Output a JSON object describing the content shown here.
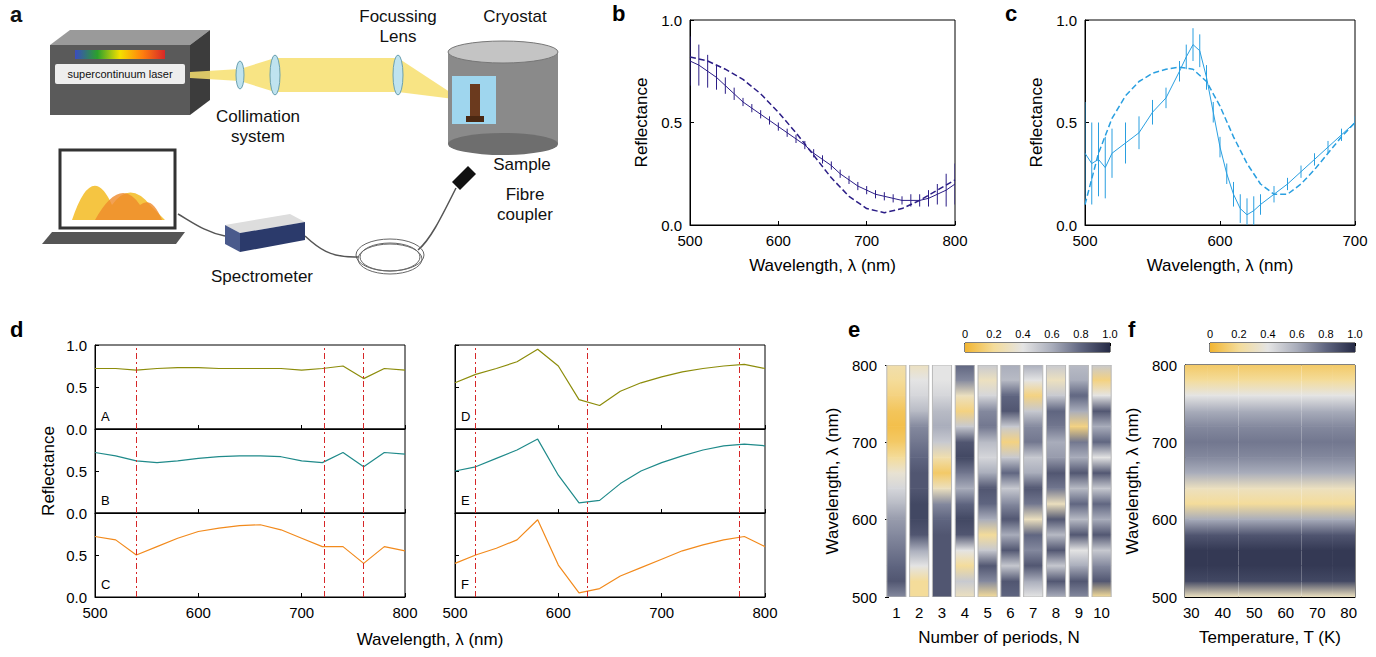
{
  "diagram": {
    "panel_label": "a",
    "labels": {
      "laser": "supercontinuum laser",
      "collimation": [
        "Collimation",
        "system"
      ],
      "focussing": [
        "Focussing",
        "Lens"
      ],
      "cryostat": "Cryostat",
      "sample": "Sample",
      "fibre": [
        "Fibre",
        "coupler"
      ],
      "spectrometer": "Spectrometer"
    }
  },
  "chart_data": [
    {
      "type": "line",
      "panel_label": "b",
      "xlabel": "Wavelength, λ (nm)",
      "ylabel": "Reflectance",
      "xlim": [
        500,
        800
      ],
      "xticks": [
        500,
        600,
        700,
        800
      ],
      "ylim": [
        0,
        1
      ],
      "yticks": [
        {
          "value": 0,
          "label": "0.0"
        },
        {
          "value": 0.5,
          "label": "0.5"
        },
        {
          "value": 1,
          "label": "1.0"
        }
      ],
      "series": [
        {
          "type": "line",
          "color": "#2b1d86",
          "line_style": "solid",
          "x": [
            500,
            510,
            520,
            530,
            540,
            550,
            560,
            570,
            580,
            590,
            600,
            610,
            620,
            630,
            640,
            650,
            660,
            670,
            680,
            690,
            700,
            710,
            720,
            730,
            740,
            750,
            760,
            770,
            780,
            790,
            800
          ],
          "values": [
            0.8,
            0.78,
            0.75,
            0.72,
            0.68,
            0.64,
            0.6,
            0.57,
            0.54,
            0.51,
            0.48,
            0.45,
            0.42,
            0.39,
            0.35,
            0.32,
            0.29,
            0.25,
            0.22,
            0.19,
            0.17,
            0.15,
            0.14,
            0.13,
            0.12,
            0.12,
            0.12,
            0.13,
            0.15,
            0.17,
            0.2
          ],
          "errors": [
            0.12,
            0.1,
            0.08,
            0.06,
            0.04,
            0.03,
            0.02,
            0.02,
            0.02,
            0.02,
            0.02,
            0.02,
            0.02,
            0.02,
            0.02,
            0.02,
            0.02,
            0.02,
            0.02,
            0.02,
            0.02,
            0.02,
            0.02,
            0.02,
            0.02,
            0.03,
            0.03,
            0.04,
            0.05,
            0.08,
            0.1
          ]
        },
        {
          "type": "line",
          "color": "#2b1d86",
          "line_style": "dashed",
          "x": [
            500,
            520,
            540,
            560,
            580,
            600,
            620,
            640,
            660,
            680,
            700,
            720,
            740,
            760,
            780,
            800
          ],
          "values": [
            0.82,
            0.8,
            0.76,
            0.71,
            0.64,
            0.55,
            0.45,
            0.34,
            0.23,
            0.14,
            0.08,
            0.06,
            0.08,
            0.12,
            0.17,
            0.22
          ]
        }
      ]
    },
    {
      "type": "line",
      "panel_label": "c",
      "xlabel": "Wavelength, λ (nm)",
      "ylabel": "Reflectance",
      "xlim": [
        500,
        700
      ],
      "xticks": [
        500,
        600,
        700
      ],
      "ylim": [
        0,
        1
      ],
      "yticks": [
        {
          "value": 0,
          "label": "0.0"
        },
        {
          "value": 0.5,
          "label": "0.5"
        },
        {
          "value": 1,
          "label": "1.0"
        }
      ],
      "series": [
        {
          "type": "line",
          "color": "#2a9fe0",
          "line_style": "solid",
          "x": [
            500,
            505,
            510,
            515,
            520,
            530,
            540,
            550,
            560,
            570,
            575,
            580,
            585,
            590,
            595,
            600,
            605,
            610,
            615,
            620,
            625,
            630,
            640,
            650,
            660,
            670,
            680,
            690,
            700
          ],
          "values": [
            0.35,
            0.3,
            0.32,
            0.28,
            0.35,
            0.4,
            0.45,
            0.55,
            0.62,
            0.75,
            0.82,
            0.88,
            0.85,
            0.72,
            0.55,
            0.38,
            0.25,
            0.15,
            0.08,
            0.05,
            0.07,
            0.1,
            0.15,
            0.2,
            0.26,
            0.32,
            0.38,
            0.44,
            0.5
          ],
          "errors": [
            0.25,
            0.2,
            0.18,
            0.15,
            0.12,
            0.1,
            0.08,
            0.06,
            0.05,
            0.05,
            0.06,
            0.08,
            0.08,
            0.06,
            0.05,
            0.05,
            0.05,
            0.06,
            0.07,
            0.08,
            0.07,
            0.05,
            0.04,
            0.03,
            0.03,
            0.03,
            0.03,
            0.03,
            0.03
          ]
        },
        {
          "type": "line",
          "color": "#2a9fe0",
          "line_style": "dashed",
          "x": [
            500,
            510,
            520,
            530,
            540,
            550,
            560,
            570,
            580,
            590,
            600,
            610,
            620,
            630,
            640,
            650,
            660,
            670,
            680,
            690,
            700
          ],
          "values": [
            0.1,
            0.35,
            0.52,
            0.63,
            0.7,
            0.74,
            0.76,
            0.77,
            0.76,
            0.7,
            0.58,
            0.43,
            0.3,
            0.2,
            0.15,
            0.15,
            0.2,
            0.27,
            0.35,
            0.43,
            0.5
          ]
        }
      ]
    },
    {
      "type": "line",
      "panel_label": "d",
      "xlabel": "Wavelength, λ (nm)",
      "ylabel": "Reflectance",
      "x": [
        500,
        520,
        540,
        560,
        580,
        600,
        620,
        640,
        660,
        680,
        700,
        720,
        740,
        760,
        780,
        800
      ],
      "subplots": [
        {
          "title": "A",
          "column": 1,
          "color": "#8c8c0a",
          "reference_lines": [
            540,
            722,
            760
          ],
          "tick_labels": "y",
          "xlim": [
            500,
            800
          ],
          "xticks": [
            500,
            600,
            700,
            800
          ],
          "ylim": [
            0,
            1
          ],
          "yticks": [
            {
              "value": 0,
              "label": "0.0"
            },
            {
              "value": 0.5,
              "label": "0.5"
            },
            {
              "value": 1,
              "label": "1.0"
            }
          ],
          "values": [
            0.72,
            0.72,
            0.7,
            0.72,
            0.73,
            0.73,
            0.72,
            0.72,
            0.72,
            0.72,
            0.7,
            0.72,
            0.75,
            0.6,
            0.72,
            0.7
          ]
        },
        {
          "title": "B",
          "column": 1,
          "color": "#1f8a8a",
          "reference_lines": [
            540,
            722,
            760
          ],
          "tick_labels": "y",
          "xlim": [
            500,
            800
          ],
          "xticks": [
            500,
            600,
            700,
            800
          ],
          "ylim": [
            0,
            1
          ],
          "yticks": [
            {
              "value": 0,
              "label": "0.0"
            },
            {
              "value": 0.5,
              "label": "0.5"
            }
          ],
          "values": [
            0.72,
            0.68,
            0.62,
            0.6,
            0.62,
            0.65,
            0.67,
            0.68,
            0.68,
            0.67,
            0.62,
            0.6,
            0.72,
            0.55,
            0.72,
            0.7
          ]
        },
        {
          "title": "C",
          "column": 1,
          "color": "#f28a1c",
          "reference_lines": [
            540,
            722,
            760
          ],
          "xlim": [
            500,
            800
          ],
          "xticks": [
            500,
            600,
            700,
            800
          ],
          "ylim": [
            0,
            1
          ],
          "yticks": [
            {
              "value": 0,
              "label": "0.0"
            },
            {
              "value": 0.5,
              "label": "0.5"
            }
          ],
          "values": [
            0.72,
            0.68,
            0.5,
            0.6,
            0.7,
            0.78,
            0.82,
            0.85,
            0.86,
            0.8,
            0.7,
            0.6,
            0.6,
            0.4,
            0.6,
            0.55
          ]
        },
        {
          "title": "D",
          "column": 2,
          "color": "#8c8c0a",
          "reference_lines": [
            520,
            628,
            775
          ],
          "tick_labels": false,
          "xlim": [
            500,
            800
          ],
          "xticks": [
            500,
            600,
            700,
            800
          ],
          "ylim": [
            0,
            1
          ],
          "yticks": [
            {
              "value": 0,
              "label": "0.0"
            },
            {
              "value": 0.5,
              "label": "0.5"
            },
            {
              "value": 1,
              "label": "1.0"
            }
          ],
          "values": [
            0.55,
            0.65,
            0.72,
            0.8,
            0.95,
            0.75,
            0.35,
            0.28,
            0.45,
            0.55,
            0.62,
            0.68,
            0.72,
            0.75,
            0.77,
            0.72
          ]
        },
        {
          "title": "E",
          "column": 2,
          "color": "#1f8a8a",
          "reference_lines": [
            520,
            628,
            775
          ],
          "tick_labels": false,
          "xlim": [
            500,
            800
          ],
          "xticks": [
            500,
            600,
            700,
            800
          ],
          "ylim": [
            0,
            1
          ],
          "yticks": [
            {
              "value": 0,
              "label": "0.0"
            },
            {
              "value": 0.5,
              "label": "0.5"
            }
          ],
          "values": [
            0.5,
            0.55,
            0.65,
            0.75,
            0.88,
            0.45,
            0.12,
            0.15,
            0.35,
            0.5,
            0.6,
            0.68,
            0.75,
            0.8,
            0.82,
            0.8
          ]
        },
        {
          "title": "F",
          "column": 2,
          "color": "#f28a1c",
          "reference_lines": [
            520,
            628,
            775
          ],
          "tick_labels": "x",
          "xlim": [
            500,
            800
          ],
          "xticks": [
            500,
            600,
            700,
            800
          ],
          "ylim": [
            0,
            1
          ],
          "yticks": [
            {
              "value": 0,
              "label": "0.0"
            },
            {
              "value": 0.5,
              "label": "0.5"
            }
          ],
          "values": [
            0.4,
            0.5,
            0.58,
            0.68,
            0.92,
            0.38,
            0.05,
            0.1,
            0.25,
            0.35,
            0.45,
            0.55,
            0.62,
            0.68,
            0.72,
            0.6
          ]
        }
      ]
    },
    {
      "type": "heatmap",
      "panel_label": "e",
      "xlabel": "Number of periods, N",
      "ylabel": "Wavelength, λ (nm)",
      "x": [
        1,
        2,
        3,
        4,
        5,
        6,
        7,
        8,
        9,
        10
      ],
      "y": [
        500,
        520,
        540,
        560,
        580,
        600,
        620,
        640,
        660,
        680,
        700,
        720,
        740,
        760,
        780,
        800
      ],
      "xlim": [
        0.5,
        10.5
      ],
      "xticks": [
        1,
        2,
        3,
        4,
        5,
        6,
        7,
        8,
        9,
        10
      ],
      "ylim": [
        500,
        800
      ],
      "yticks": [
        500,
        600,
        700,
        800
      ],
      "cells": [
        [
          0.7,
          0.85,
          0.8,
          0.75,
          0.7,
          0.65,
          0.55,
          0.45,
          0.35,
          0.2,
          0.1,
          0.05,
          0.08,
          0.15,
          0.2,
          0.25
        ],
        [
          0.2,
          0.2,
          0.4,
          0.6,
          0.85,
          0.9,
          0.9,
          0.85,
          0.85,
          0.8,
          0.75,
          0.7,
          0.55,
          0.45,
          0.4,
          0.3
        ],
        [
          0.85,
          0.85,
          0.85,
          0.85,
          0.85,
          0.8,
          0.7,
          0.3,
          0.1,
          0.25,
          0.5,
          0.6,
          0.55,
          0.45,
          0.4,
          0.4
        ],
        [
          0.3,
          0.5,
          0.2,
          0.4,
          0.85,
          0.9,
          0.8,
          0.6,
          0.75,
          0.9,
          0.85,
          0.5,
          0.15,
          0.3,
          0.7,
          0.8
        ],
        [
          0.2,
          0.7,
          0.85,
          0.5,
          0.2,
          0.6,
          0.8,
          0.85,
          0.6,
          0.45,
          0.55,
          0.75,
          0.7,
          0.45,
          0.3,
          0.5
        ],
        [
          0.8,
          0.85,
          0.5,
          0.85,
          0.6,
          0.85,
          0.7,
          0.5,
          0.8,
          0.5,
          0.15,
          0.5,
          0.85,
          0.8,
          0.55,
          0.6
        ],
        [
          0.4,
          0.6,
          0.85,
          0.7,
          0.8,
          0.3,
          0.75,
          0.85,
          0.6,
          0.5,
          0.75,
          0.7,
          0.5,
          0.15,
          0.4,
          0.6
        ],
        [
          0.6,
          0.85,
          0.5,
          0.85,
          0.55,
          0.85,
          0.3,
          0.75,
          0.85,
          0.65,
          0.6,
          0.75,
          0.8,
          0.5,
          0.3,
          0.5
        ],
        [
          0.7,
          0.85,
          0.6,
          0.4,
          0.85,
          0.55,
          0.8,
          0.55,
          0.85,
          0.6,
          0.75,
          0.15,
          0.6,
          0.8,
          0.6,
          0.55
        ],
        [
          0.2,
          0.85,
          0.7,
          0.5,
          0.85,
          0.6,
          0.8,
          0.5,
          0.85,
          0.4,
          0.8,
          0.6,
          0.85,
          0.4,
          0.15,
          0.5
        ]
      ],
      "colorbar": {
        "range": [
          0,
          1
        ],
        "ticks": [
          0,
          0.2,
          0.4,
          0.6,
          0.8,
          {
            "value": 1,
            "label": "1.0"
          }
        ]
      }
    },
    {
      "type": "heatmap",
      "panel_label": "f",
      "xlabel": "Temperature, T (K)",
      "ylabel": "Wavelength, λ (nm)",
      "x": [
        30,
        40,
        50,
        60,
        70,
        80
      ],
      "y": [
        500,
        520,
        540,
        560,
        580,
        600,
        620,
        640,
        660,
        680,
        700,
        720,
        740,
        760,
        780,
        800
      ],
      "xlim": [
        28,
        82
      ],
      "xticks": [
        30,
        40,
        50,
        60,
        70,
        80
      ],
      "ylim": [
        500,
        800
      ],
      "yticks": [
        500,
        600,
        700,
        800
      ],
      "cells": [
        [
          0.3,
          0.9,
          0.95,
          0.95,
          0.85,
          0.6,
          0.2,
          0.3,
          0.6,
          0.7,
          0.75,
          0.7,
          0.6,
          0.4,
          0.2,
          0.1
        ],
        [
          0.3,
          0.9,
          0.95,
          0.95,
          0.85,
          0.6,
          0.2,
          0.3,
          0.6,
          0.7,
          0.75,
          0.7,
          0.6,
          0.4,
          0.2,
          0.1
        ],
        [
          0.3,
          0.9,
          0.95,
          0.95,
          0.85,
          0.6,
          0.2,
          0.3,
          0.6,
          0.7,
          0.75,
          0.7,
          0.6,
          0.4,
          0.2,
          0.1
        ],
        [
          0.3,
          0.9,
          0.95,
          0.95,
          0.85,
          0.6,
          0.2,
          0.3,
          0.6,
          0.7,
          0.75,
          0.7,
          0.6,
          0.4,
          0.2,
          0.1
        ],
        [
          0.3,
          0.9,
          0.95,
          0.95,
          0.85,
          0.6,
          0.2,
          0.3,
          0.6,
          0.7,
          0.75,
          0.7,
          0.6,
          0.4,
          0.2,
          0.1
        ],
        [
          0.3,
          0.9,
          0.95,
          0.95,
          0.85,
          0.6,
          0.2,
          0.3,
          0.6,
          0.7,
          0.75,
          0.7,
          0.6,
          0.4,
          0.2,
          0.1
        ]
      ],
      "colorbar": {
        "range": [
          0,
          1
        ],
        "ticks": [
          0,
          0.2,
          0.4,
          0.6,
          0.8,
          {
            "value": 1,
            "label": "1.0"
          }
        ]
      }
    }
  ]
}
